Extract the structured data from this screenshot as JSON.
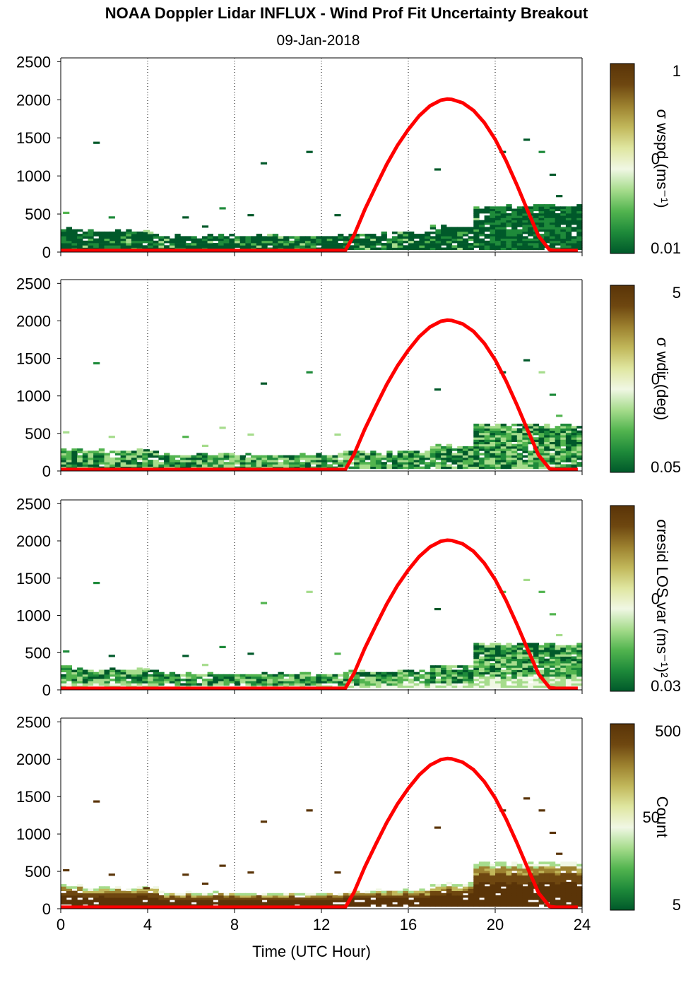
{
  "title": "NOAA Doppler Lidar INFLUX - Wind Prof Fit Uncertainty Breakout",
  "subtitle": "09-Jan-2018",
  "colors": {
    "cmap": [
      "#00592a",
      "#1e8a3a",
      "#52b44f",
      "#a6dc8c",
      "#f0f7e4",
      "#dfe6a0",
      "#c1b75a",
      "#9c812f",
      "#6e4710",
      "#5a3408"
    ],
    "sun_curve": "#ff0000"
  },
  "chart_data": [
    {
      "type": "heatmap",
      "ylabel": "",
      "xlim": [
        0,
        24
      ],
      "ylim": [
        0,
        2550
      ],
      "yticks": [
        "0",
        "500",
        "1000",
        "1500",
        "2000",
        "2500"
      ],
      "xticks": [],
      "grid": "vertical dotted at 4,8,12,16,20,24",
      "colorbar": {
        "label": "σ wspd (ms⁻¹)",
        "ticks": [
          "1",
          "0",
          "0.01"
        ],
        "range": [
          0.01,
          1
        ],
        "scale": "log"
      },
      "contours": [
        {
          "x": [
            0,
            1.0
          ],
          "ymax": 290
        },
        {
          "x": [
            1.0,
            4.5
          ],
          "ymax": 260
        },
        {
          "x": [
            4.5,
            13.0
          ],
          "ymax": 200
        },
        {
          "x": [
            13.0,
            17.0
          ],
          "ymax": 240
        },
        {
          "x": [
            17.0,
            19.0
          ],
          "ymax": 320
        },
        {
          "x": [
            19.0,
            23.8
          ],
          "ymax": 600
        }
      ],
      "bias": "low",
      "sun_curve": {
        "x": [
          0,
          13.1,
          13.5,
          14,
          14.5,
          15,
          15.5,
          16,
          16.5,
          17,
          17.5,
          17.8,
          18,
          18.5,
          19,
          19.5,
          20,
          20.5,
          21,
          21.5,
          22,
          22.5,
          22.8,
          23.8
        ],
        "y": [
          20,
          20,
          220,
          560,
          860,
          1150,
          1400,
          1610,
          1790,
          1920,
          1995,
          2010,
          2005,
          1960,
          1860,
          1700,
          1480,
          1200,
          880,
          540,
          210,
          30,
          20,
          20
        ]
      }
    },
    {
      "type": "heatmap",
      "ylabel": "",
      "xlim": [
        0,
        24
      ],
      "ylim": [
        0,
        2550
      ],
      "yticks": [
        "0",
        "500",
        "1000",
        "1500",
        "2000",
        "2500"
      ],
      "xticks": [],
      "grid": "vertical dotted at 4,8,12,16,20,24",
      "colorbar": {
        "label": "σ wdir (deg)",
        "ticks": [
          "5",
          "0",
          "0.05"
        ],
        "range": [
          0.05,
          5
        ],
        "scale": "log"
      },
      "contours": [
        {
          "x": [
            0,
            1.0
          ],
          "ymax": 290
        },
        {
          "x": [
            1.0,
            4.5
          ],
          "ymax": 260
        },
        {
          "x": [
            4.5,
            13.0
          ],
          "ymax": 200
        },
        {
          "x": [
            13.0,
            17.0
          ],
          "ymax": 240
        },
        {
          "x": [
            17.0,
            19.0
          ],
          "ymax": 320
        },
        {
          "x": [
            19.0,
            23.8
          ],
          "ymax": 600
        }
      ],
      "bias": "mid",
      "sun_curve": {
        "x": [
          0,
          13.1,
          13.5,
          14,
          14.5,
          15,
          15.5,
          16,
          16.5,
          17,
          17.5,
          17.8,
          18,
          18.5,
          19,
          19.5,
          20,
          20.5,
          21,
          21.5,
          22,
          22.5,
          22.8,
          23.8
        ],
        "y": [
          20,
          20,
          220,
          560,
          860,
          1150,
          1400,
          1610,
          1790,
          1920,
          1995,
          2010,
          2005,
          1960,
          1860,
          1700,
          1480,
          1200,
          880,
          540,
          210,
          30,
          20,
          20
        ]
      }
    },
    {
      "type": "heatmap",
      "ylabel": "",
      "xlim": [
        0,
        24
      ],
      "ylim": [
        0,
        2550
      ],
      "yticks": [
        "0",
        "500",
        "1000",
        "1500",
        "2000",
        "2500"
      ],
      "xticks": [],
      "grid": "vertical dotted at 4,8,12,16,20,24",
      "colorbar": {
        "label": "σresid LOS var (ms⁻¹)²",
        "ticks": [
          "",
          "0",
          "0.03"
        ],
        "range": [
          0.03,
          3
        ],
        "scale": "log"
      },
      "contours": [
        {
          "x": [
            0,
            1.0
          ],
          "ymax": 290
        },
        {
          "x": [
            1.0,
            4.5
          ],
          "ymax": 260
        },
        {
          "x": [
            4.5,
            13.0
          ],
          "ymax": 200
        },
        {
          "x": [
            13.0,
            17.0
          ],
          "ymax": 240
        },
        {
          "x": [
            17.0,
            19.0
          ],
          "ymax": 320
        },
        {
          "x": [
            19.0,
            23.8
          ],
          "ymax": 600
        }
      ],
      "bias": "light",
      "sun_curve": {
        "x": [
          0,
          13.1,
          13.5,
          14,
          14.5,
          15,
          15.5,
          16,
          16.5,
          17,
          17.5,
          17.8,
          18,
          18.5,
          19,
          19.5,
          20,
          20.5,
          21,
          21.5,
          22,
          22.5,
          22.8,
          23.8
        ],
        "y": [
          20,
          20,
          220,
          560,
          860,
          1150,
          1400,
          1610,
          1790,
          1920,
          1995,
          2010,
          2005,
          1960,
          1860,
          1700,
          1480,
          1200,
          880,
          540,
          210,
          30,
          20,
          20
        ]
      }
    },
    {
      "type": "heatmap",
      "xlabel": "Time (UTC Hour)",
      "ylabel": "",
      "xlim": [
        0,
        24
      ],
      "ylim": [
        0,
        2550
      ],
      "yticks": [
        "0",
        "500",
        "1000",
        "1500",
        "2000",
        "2500"
      ],
      "xticks": [
        "0",
        "4",
        "8",
        "12",
        "16",
        "20",
        "24"
      ],
      "grid": "vertical dotted at 4,8,12,16,20,24",
      "colorbar": {
        "label": "Count",
        "ticks": [
          "500",
          "50",
          "5"
        ],
        "range": [
          1,
          500
        ],
        "scale": "log"
      },
      "contours": [
        {
          "x": [
            0,
            1.0
          ],
          "ymax": 290
        },
        {
          "x": [
            1.0,
            4.5
          ],
          "ymax": 260
        },
        {
          "x": [
            4.5,
            13.0
          ],
          "ymax": 200
        },
        {
          "x": [
            13.0,
            17.0
          ],
          "ymax": 240
        },
        {
          "x": [
            17.0,
            19.0
          ],
          "ymax": 320
        },
        {
          "x": [
            19.0,
            23.8
          ],
          "ymax": 600
        }
      ],
      "bias": "count",
      "sun_curve": {
        "x": [
          0,
          13.1,
          13.5,
          14,
          14.5,
          15,
          15.5,
          16,
          16.5,
          17,
          17.5,
          17.8,
          18,
          18.5,
          19,
          19.5,
          20,
          20.5,
          21,
          21.5,
          22,
          22.5,
          22.8,
          23.8
        ],
        "y": [
          20,
          20,
          220,
          560,
          860,
          1150,
          1400,
          1610,
          1790,
          1920,
          1995,
          2010,
          2005,
          1960,
          1860,
          1700,
          1480,
          1200,
          880,
          540,
          210,
          30,
          20,
          20
        ]
      }
    }
  ]
}
